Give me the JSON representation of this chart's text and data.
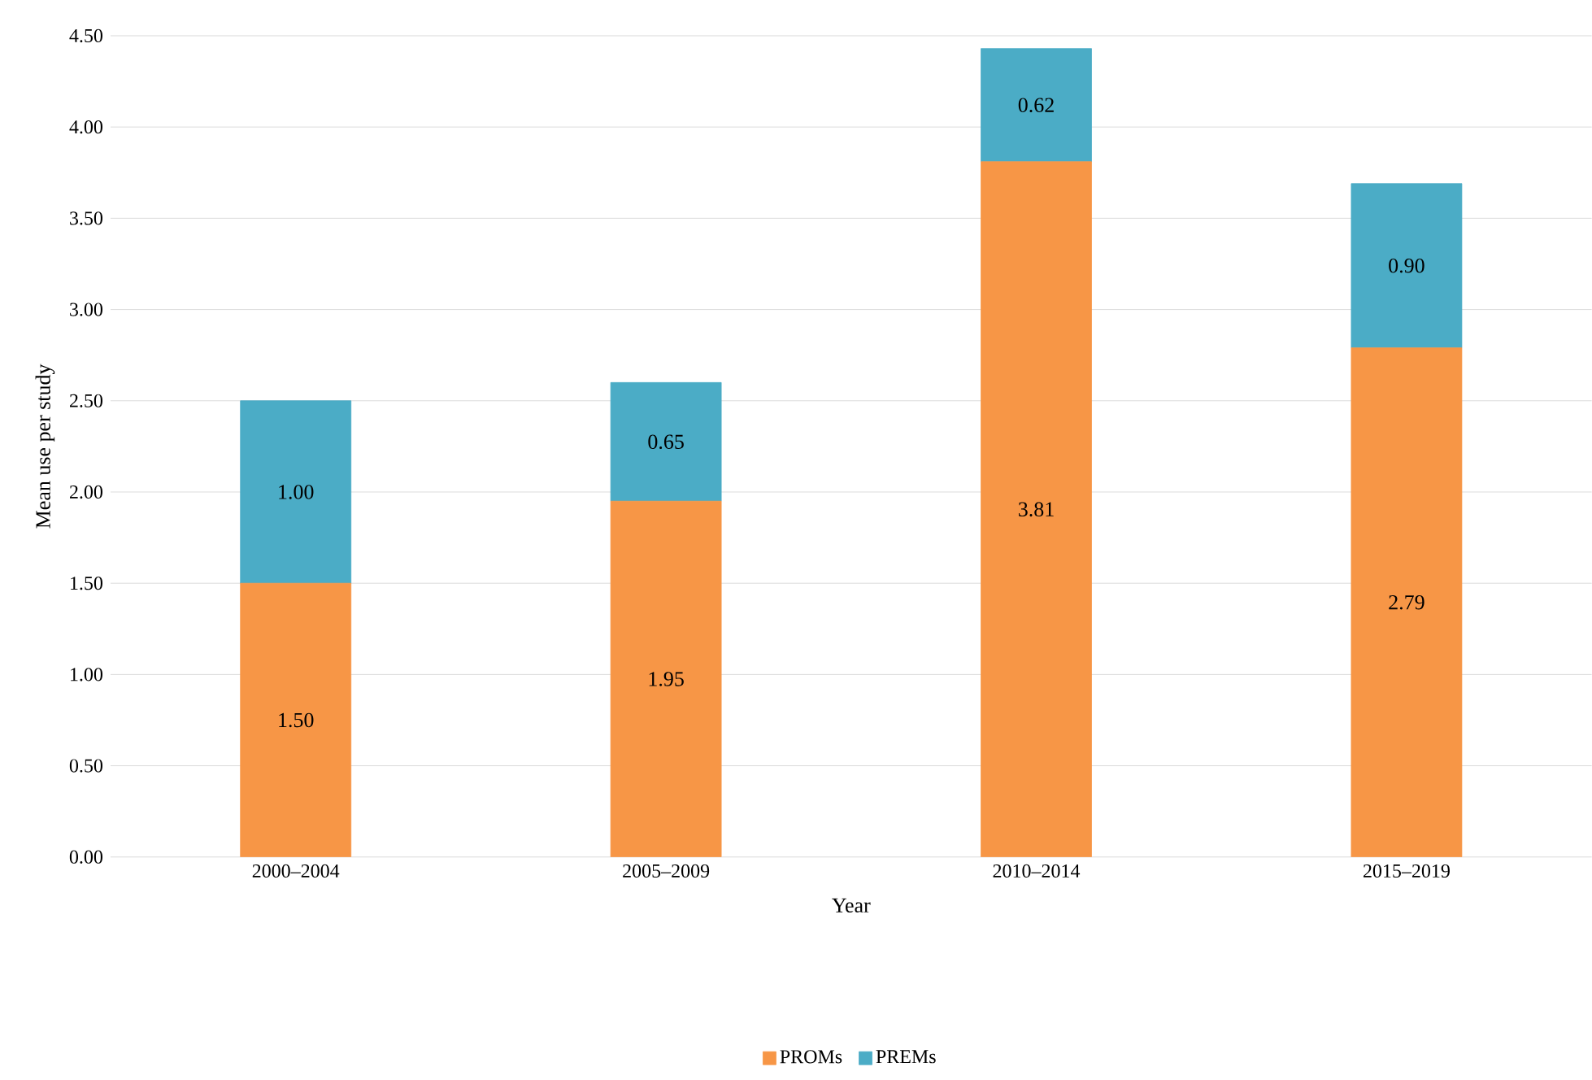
{
  "chart_data": {
    "type": "bar",
    "stacked": true,
    "xlabel": "Year",
    "ylabel": "Mean use per study",
    "categories": [
      "2000–2004",
      "2005–2009",
      "2010–2014",
      "2015–2019"
    ],
    "series": [
      {
        "name": "PROMs",
        "color": "#f79646",
        "values": [
          1.5,
          1.95,
          3.81,
          2.79
        ],
        "value_labels": [
          "1.50",
          "1.95",
          "3.81",
          "2.79"
        ]
      },
      {
        "name": "PREMs",
        "color": "#4bacc6",
        "values": [
          1.0,
          0.65,
          0.62,
          0.9
        ],
        "value_labels": [
          "1.00",
          "0.65",
          "0.62",
          "0.90"
        ]
      }
    ],
    "ylim": [
      0,
      4.5
    ],
    "yticks": [
      {
        "value": 0,
        "label": "0.00"
      },
      {
        "value": 0.5,
        "label": "0.50"
      },
      {
        "value": 1,
        "label": "1.00"
      },
      {
        "value": 1.5,
        "label": "1.50"
      },
      {
        "value": 2,
        "label": "2.00"
      },
      {
        "value": 2.5,
        "label": "2.50"
      },
      {
        "value": 3,
        "label": "3.00"
      },
      {
        "value": 3.5,
        "label": "3.50"
      },
      {
        "value": 4,
        "label": "4.00"
      },
      {
        "value": 4.5,
        "label": "4.50"
      }
    ],
    "grid": "y",
    "legend": "bottom"
  }
}
